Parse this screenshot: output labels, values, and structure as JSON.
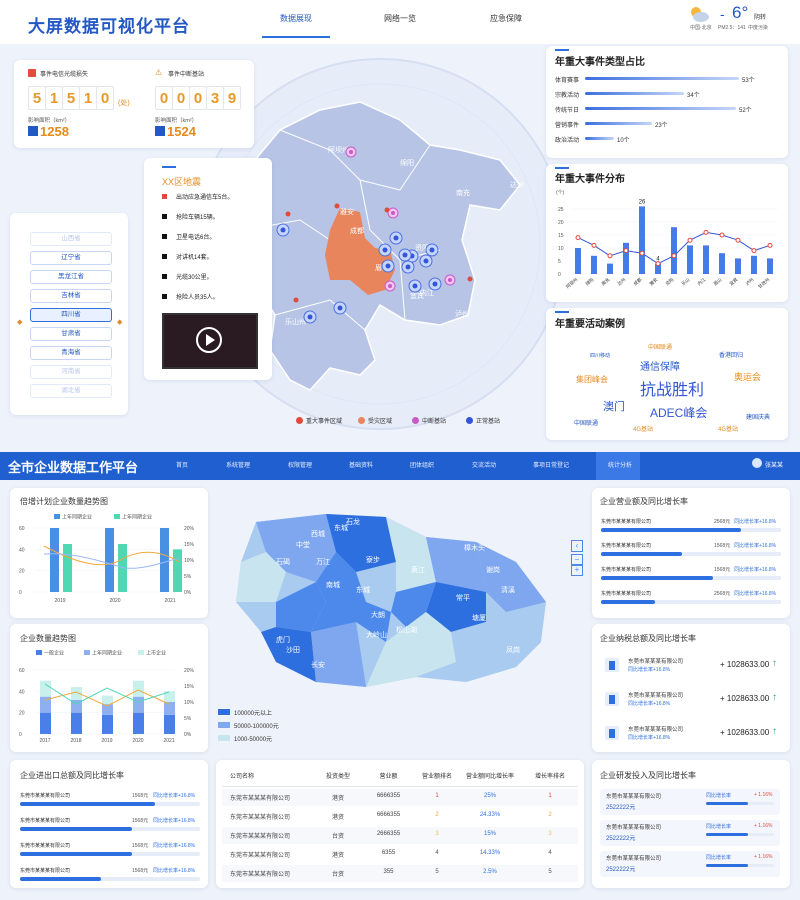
{
  "top": {
    "title": "大屏数据可视化平台",
    "tabs": [
      "数据展现",
      "网络一览",
      "应急保障"
    ],
    "weather": {
      "temp": "6°",
      "prefix": "-",
      "desc": "阴转",
      "city": "中国·北京",
      "aqi": "PM2.5：141",
      "aqi_level": "中度污染"
    }
  },
  "stats": [
    {
      "label": "事件电信光缆损失",
      "digits": [
        "5",
        "1",
        "5",
        "1",
        "0"
      ],
      "unit": "(处)",
      "area_label": "影响面积（km²）",
      "area_value": "1258"
    },
    {
      "label": "事件中断基站",
      "digits": [
        "0",
        "0",
        "0",
        "3",
        "9"
      ],
      "unit": "",
      "area_label": "影响面积（km²）",
      "area_value": "1524"
    }
  ],
  "provinces": [
    "山西省",
    "辽宁省",
    "黑龙江省",
    "吉林省",
    "四川省",
    "甘肃省",
    "青海省",
    "河南省",
    "湖北省"
  ],
  "quake": {
    "title": "XX区地震",
    "items": [
      "出动应急通信车5台。",
      "抢险车辆15辆。",
      "卫星电话6台。",
      "对讲机14套。",
      "光缆30公里。",
      "抢险人员35人。"
    ]
  },
  "map_top": {
    "place_labels": [
      "阿坝州",
      "绵阳",
      "南充",
      "达州",
      "成都",
      "雅安",
      "眉山",
      "资阳",
      "内江",
      "宜宾",
      "乐山州",
      "泸州"
    ],
    "legend": [
      "重大事件区域",
      "受灾区域",
      "中断基站",
      "正常基站"
    ]
  },
  "event_types": {
    "title": "年重大事件类型占比",
    "items": [
      {
        "name": "体育赛事",
        "value": 53,
        "label": "53个"
      },
      {
        "name": "宗教活动",
        "value": 34,
        "label": "34个"
      },
      {
        "name": "传统节日",
        "value": 52,
        "label": "52个"
      },
      {
        "name": "营销事件",
        "value": 23,
        "label": "23个"
      },
      {
        "name": "政治活动",
        "value": 10,
        "label": "10个"
      }
    ]
  },
  "event_dist": {
    "title": "年重大事件分布",
    "unit": "(个)",
    "label_peak": "26",
    "label_low": "4",
    "yticks": [
      "0",
      "5",
      "10",
      "15",
      "20",
      "25"
    ]
  },
  "wordcloud": {
    "title": "年重要活动案例",
    "words": [
      "中国联通",
      "四川移动",
      "香港回归",
      "通信保障",
      "集团峰会",
      "抗战胜利",
      "奥运会",
      "澳门",
      "ADEC峰会",
      "中国联通",
      "建国庆典",
      "4G基站",
      "4G基站"
    ]
  },
  "bottom": {
    "title": "全市企业数据工作平台",
    "nav": [
      "首页",
      "系统管理",
      "权限管理",
      "基础资料",
      "团体组织",
      "交流活动",
      "事项日常登记",
      "统计分析"
    ],
    "user": "张某某"
  },
  "chart_data": [
    {
      "type": "bar",
      "title": "年重大事件分布",
      "categories": [
        "阿坝州",
        "绵阳",
        "南充",
        "达州",
        "成都",
        "雅安",
        "资阳",
        "乐山",
        "内江",
        "眉山",
        "宜宾",
        "泸州",
        "甘孜州"
      ],
      "values": [
        10,
        7,
        4,
        12,
        26,
        4,
        18,
        11,
        11,
        8,
        6,
        7,
        6
      ],
      "ylim": [
        0,
        30
      ]
    },
    {
      "type": "bar",
      "title": "倍增计划企业数量趋势图",
      "categories": [
        "2019",
        "2020",
        "2021"
      ],
      "series": [
        {
          "name": "上年同期企业",
          "values": [
            60,
            60,
            60
          ]
        },
        {
          "name": "上年同期企业",
          "values": [
            45,
            45,
            40
          ]
        }
      ],
      "left_ticks": [
        "0",
        "20",
        "40",
        "60"
      ],
      "right_ticks": [
        "0%",
        "5%",
        "10%",
        "15%",
        "20%"
      ]
    },
    {
      "type": "bar",
      "title": "企业数量趋势图",
      "categories": [
        "2017",
        "2018",
        "2019",
        "2020",
        "2021"
      ],
      "series": [
        {
          "name": "一般企业",
          "values": [
            20,
            20,
            18,
            20,
            18
          ]
        },
        {
          "name": "上年同期企业",
          "values": [
            15,
            12,
            10,
            15,
            12
          ]
        },
        {
          "name": "上市企业",
          "values": [
            15,
            12,
            8,
            15,
            10
          ]
        }
      ],
      "left_ticks": [
        "0",
        "20",
        "40",
        "60"
      ],
      "right_ticks": [
        "0%",
        "5%",
        "10%",
        "15%",
        "20%"
      ]
    }
  ],
  "city_map": {
    "labels": [
      "西城",
      "东城",
      "中堂",
      "石龙",
      "石碣",
      "万江",
      "寮步",
      "南城",
      "东城",
      "樟木头",
      "黄江",
      "大朗",
      "大岭山",
      "松山湖",
      "常平",
      "谢岗",
      "清溪",
      "虎门",
      "沙田",
      "长安",
      "塘厦",
      "凤岗"
    ],
    "legend": [
      "100000元以上",
      "50000-100000元",
      "1000-50000元"
    ]
  },
  "revenue": {
    "title": "企业营业额及同比增长率",
    "rows": [
      {
        "company": "东莞市某某某有限公司",
        "amount": "2568元",
        "growth": "同比增长率+16.8%",
        "pct": 0.78
      },
      {
        "company": "东莞市某某某有限公司",
        "amount": "1568元",
        "growth": "同比增长率+16.8%",
        "pct": 0.45
      },
      {
        "company": "东莞市某某某有限公司",
        "amount": "1568元",
        "growth": "同比增长率+16.8%",
        "pct": 0.62
      },
      {
        "company": "东莞市某某某有限公司",
        "amount": "2568元",
        "growth": "同比增长率+16.8%",
        "pct": 0.3
      }
    ]
  },
  "tax": {
    "title": "企业纳税总额及同比增长率",
    "rows": [
      {
        "company": "东莞市某某某有限公司",
        "growth": "同比增长率+16.8%",
        "amount": "+ 1028633.00"
      },
      {
        "company": "东莞市某某某有限公司",
        "growth": "同比增长率+16.8%",
        "amount": "+ 1028633.00"
      },
      {
        "company": "东莞市某某某有限公司",
        "growth": "同比增长率+16.8%",
        "amount": "+ 1028633.00"
      }
    ]
  },
  "import_export": {
    "title": "企业进出口总额及同比增长率",
    "rows": [
      {
        "company": "东莞市某某某有限公司",
        "amount": "1568元",
        "growth": "同比增长率+16.8%",
        "pct": 0.75
      },
      {
        "company": "东莞市某某某有限公司",
        "amount": "1568元",
        "growth": "同比增长率+16.8%",
        "pct": 0.62
      },
      {
        "company": "东莞市某某某有限公司",
        "amount": "1568元",
        "growth": "同比增长率+16.8%",
        "pct": 0.62
      },
      {
        "company": "东莞市某某某有限公司",
        "amount": "1568元",
        "growth": "同比增长率+16.8%",
        "pct": 0.45
      }
    ]
  },
  "table": {
    "headers": [
      "公司名称",
      "投资类型",
      "营业额",
      "营业额排名",
      "营业额同比增长率",
      "增长率排名"
    ],
    "rows": [
      [
        "东莞市某某某有限公司",
        "港资",
        "6666355",
        "1",
        "25%",
        "1"
      ],
      [
        "东莞市某某某有限公司",
        "港资",
        "6666355",
        "2",
        "24.33%",
        "2"
      ],
      [
        "东莞市某某某有限公司",
        "台资",
        "2666355",
        "3",
        "15%",
        "3"
      ],
      [
        "东莞市某某某有限公司",
        "港资",
        "6355",
        "4",
        "14.33%",
        "4"
      ],
      [
        "东莞市某某某有限公司",
        "台资",
        "355",
        "5",
        "2.5%",
        "5"
      ]
    ]
  },
  "rnd": {
    "title": "企业研发投入及同比增长率",
    "rows": [
      {
        "company": "东莞市某某某有限公司",
        "value": "2522222元",
        "growth_label": "同比增长率",
        "growth": "+ 1.16%"
      },
      {
        "company": "东莞市某某某有限公司",
        "value": "2522222元",
        "growth_label": "同比增长率",
        "growth": "+ 1.16%"
      },
      {
        "company": "东莞市某某某有限公司",
        "value": "2522222元",
        "growth_label": "同比增长率",
        "growth": "+ 1.16%"
      }
    ]
  }
}
